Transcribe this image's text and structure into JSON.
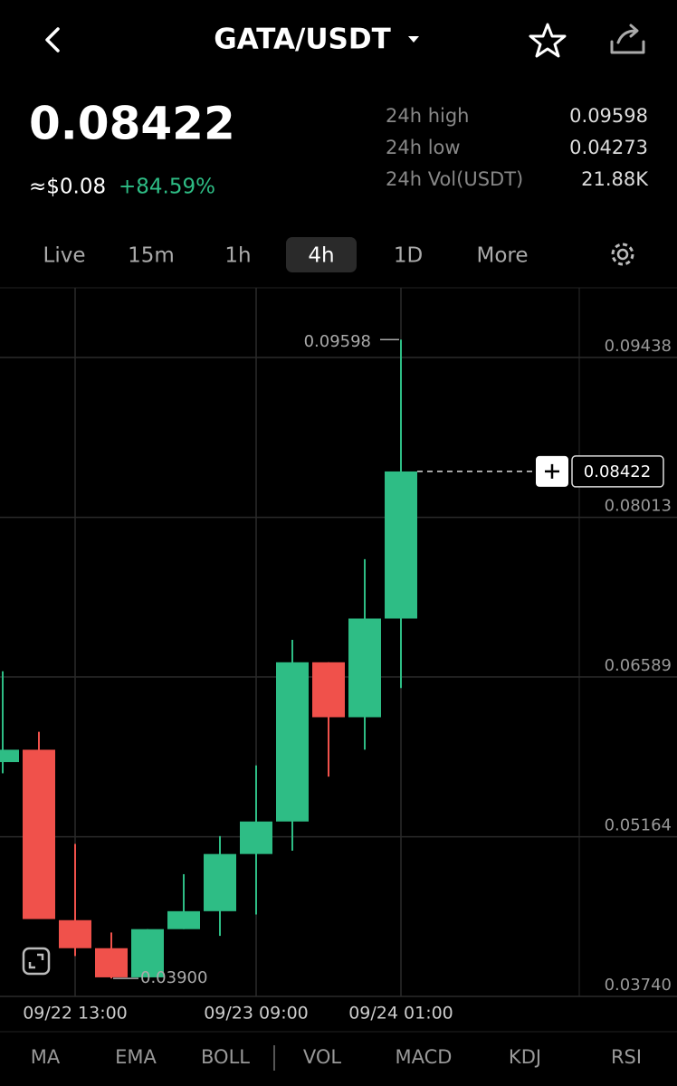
{
  "header": {
    "pair": "GATA/USDT",
    "price": "0.08422",
    "usd": "≈$0.08",
    "change": "+84.59%",
    "stats": [
      [
        "24h high",
        "0.09598"
      ],
      [
        "24h low",
        "0.04273"
      ],
      [
        "24h Vol(USDT)",
        "21.88K"
      ]
    ]
  },
  "tabs": [
    "Live",
    "15m",
    "1h",
    "4h",
    "1D",
    "More"
  ],
  "active_tab": 3,
  "indicators": [
    "MA",
    "EMA",
    "BOLL",
    "VOL",
    "MACD",
    "KDJ",
    "RSI"
  ],
  "chart_data": {
    "type": "candlestick",
    "categories": [
      null,
      null,
      "09/22 13:00",
      null,
      null,
      null,
      null,
      "09/23 09:00",
      null,
      null,
      null,
      "09/24 01:00"
    ],
    "open": [
      0.0583,
      0.0594,
      0.0442,
      0.0417,
      0.0391,
      0.0434,
      0.045,
      0.0501,
      0.053,
      0.0672,
      0.0623,
      0.0711
    ],
    "high": [
      0.0664,
      0.061,
      0.051,
      0.0431,
      0.0434,
      0.0483,
      0.0517,
      0.058,
      0.0692,
      0.0672,
      0.0764,
      0.09598
    ],
    "low": [
      0.0573,
      0.0443,
      0.041,
      0.039,
      0.0391,
      0.0434,
      0.0428,
      0.0447,
      0.0504,
      0.057,
      0.0594,
      0.0649
    ],
    "close": [
      0.0594,
      0.0443,
      0.0417,
      0.0391,
      0.0434,
      0.045,
      0.0501,
      0.053,
      0.0672,
      0.0623,
      0.0711,
      0.08422
    ],
    "up_color": "#2ebd85",
    "down_color": "#f0514b",
    "ylim": [
      0.0374,
      0.1006
    ],
    "yticks": [
      0.09438,
      0.08013,
      0.06589,
      0.05164,
      {
        "value": 0.0374,
        "label": "0.03740"
      }
    ],
    "grid": true,
    "last_price": 0.08422,
    "high_marker": 0.09598,
    "low_marker": {
      "value": 0.039,
      "label": "0.03900"
    }
  }
}
